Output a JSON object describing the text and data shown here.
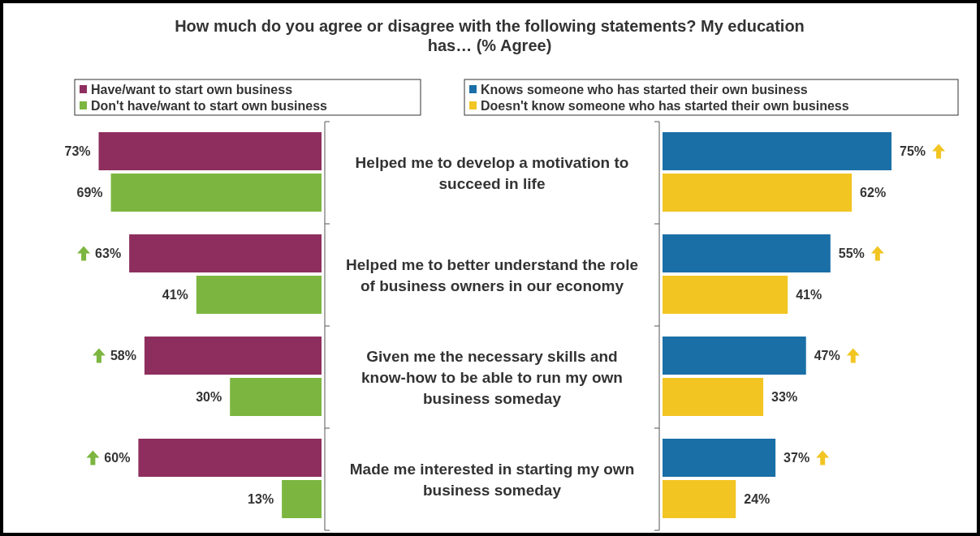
{
  "chart_data": [
    {
      "type": "bar",
      "orientation": "horizontal",
      "title": "How much do you agree or disagree with the following statements? My education has… (% Agree)",
      "categories": [
        "Helped me to develop a motivation to succeed in life",
        "Helped me to better understand the role of business owners in our economy",
        "Given me the necessary skills and know-how to be able to run my own business someday",
        "Made me interested in starting my own business someday"
      ],
      "series": [
        {
          "name": "Have/want to start own business",
          "color": "#8e2e5e",
          "values": [
            73,
            63,
            58,
            60
          ],
          "value_labels": [
            "73%",
            "63%",
            "58%",
            "60%"
          ]
        },
        {
          "name": "Don't have/want to start own business",
          "color": "#7cb640",
          "values": [
            69,
            41,
            30,
            13
          ],
          "value_labels": [
            "69%",
            "41%",
            "30%",
            "13%"
          ]
        }
      ],
      "legend": "top"
    },
    {
      "type": "bar",
      "orientation": "horizontal",
      "categories": [
        null,
        null,
        null,
        null
      ],
      "series": [
        {
          "name": "Knows someone who has started their own business",
          "color": "#1a6fa6",
          "values": [
            75,
            55,
            47,
            37
          ],
          "value_labels": [
            "75%",
            "55%",
            "47%",
            "37%"
          ]
        },
        {
          "name": "Doesn't know someone who has started their own business",
          "color": "#f2c523",
          "values": [
            62,
            41,
            33,
            24
          ],
          "value_labels": [
            "62%",
            "41%",
            "33%",
            "24%"
          ]
        }
      ],
      "legend": "top"
    }
  ]
}
